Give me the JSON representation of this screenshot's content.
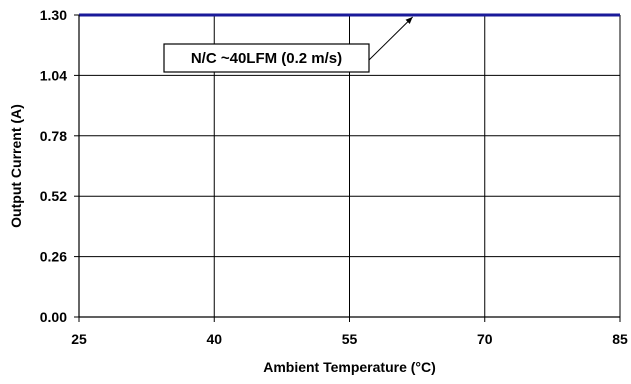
{
  "chart_data": {
    "type": "line",
    "xlabel": "Ambient Temperature (°C)",
    "ylabel": "Output Current (A)",
    "xlim": [
      25,
      85
    ],
    "ylim": [
      0,
      1.3
    ],
    "x_ticks": [
      "25",
      "40",
      "55",
      "70",
      "85"
    ],
    "y_ticks": [
      "0.00",
      "0.26",
      "0.52",
      "0.78",
      "1.04",
      "1.30"
    ],
    "grid": true,
    "series": [
      {
        "name": "N/C ~40LFM (0.2 m/s)",
        "color": "#1a1a9a",
        "x": [
          25,
          85
        ],
        "y": [
          1.3,
          1.3
        ]
      }
    ],
    "annotations": [
      {
        "text": "N/C ~40LFM (0.2 m/s)",
        "points_to": {
          "x": 62,
          "y": 1.3
        }
      }
    ]
  }
}
